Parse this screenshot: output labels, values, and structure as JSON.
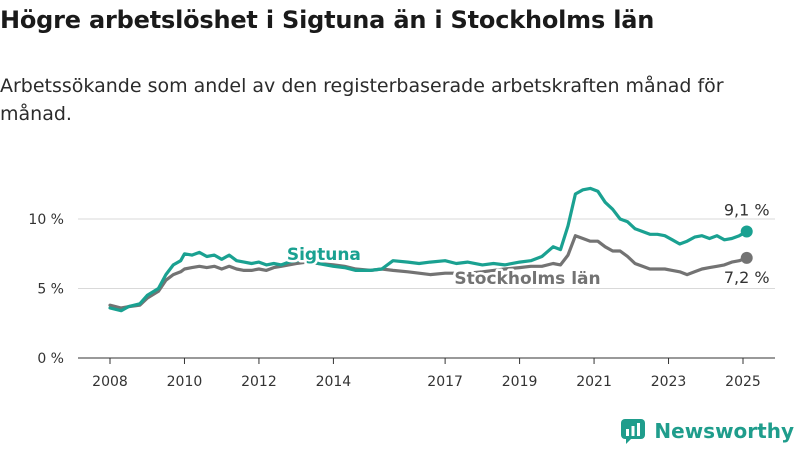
{
  "title": "Högre arbetslöshet i Sigtuna än i Stockholms län",
  "subtitle": "Arbetssökande som andel av den registerbaserade arbetskraften månad för månad.",
  "brand": "Newsworthy",
  "colors": {
    "sigtuna": "#1aa191",
    "stockholm": "#737373",
    "grid": "#d9d9d9"
  },
  "chart_data": {
    "type": "line",
    "ylim": [
      0,
      13
    ],
    "xlim": [
      2007.6,
      2025.6
    ],
    "x_ticks": [
      {
        "value": 2008,
        "label": "2008"
      },
      {
        "value": 2010,
        "label": "2010"
      },
      {
        "value": 2012,
        "label": "2012"
      },
      {
        "value": 2014,
        "label": "2014"
      },
      {
        "value": 2017,
        "label": "2017"
      },
      {
        "value": 2019,
        "label": "2019"
      },
      {
        "value": 2021,
        "label": "2021"
      },
      {
        "value": 2023,
        "label": "2023"
      },
      {
        "value": 2025,
        "label": "2025"
      }
    ],
    "y_ticks": [
      {
        "value": 0,
        "label": "0 %"
      },
      {
        "value": 5,
        "label": "5 %"
      },
      {
        "value": 10,
        "label": "10 %"
      }
    ],
    "series": [
      {
        "name": "Sigtuna",
        "end_label": "9,1 %",
        "x": [
          2008.0,
          2008.3,
          2008.5,
          2008.8,
          2009.0,
          2009.3,
          2009.5,
          2009.7,
          2009.9,
          2010.0,
          2010.2,
          2010.4,
          2010.6,
          2010.8,
          2011.0,
          2011.2,
          2011.4,
          2011.6,
          2011.8,
          2012.0,
          2012.2,
          2012.4,
          2012.6,
          2012.8,
          2013.0,
          2013.3,
          2013.6,
          2014.0,
          2014.3,
          2014.6,
          2015.0,
          2015.3,
          2015.6,
          2016.0,
          2016.3,
          2016.6,
          2017.0,
          2017.3,
          2017.6,
          2018.0,
          2018.3,
          2018.6,
          2019.0,
          2019.3,
          2019.6,
          2019.9,
          2020.1,
          2020.3,
          2020.5,
          2020.7,
          2020.9,
          2021.1,
          2021.3,
          2021.5,
          2021.7,
          2021.9,
          2022.1,
          2022.3,
          2022.5,
          2022.7,
          2022.9,
          2023.1,
          2023.3,
          2023.5,
          2023.7,
          2023.9,
          2024.1,
          2024.3,
          2024.5,
          2024.7,
          2024.9,
          2025.1
        ],
        "y": [
          3.6,
          3.4,
          3.7,
          3.9,
          4.5,
          5.0,
          6.0,
          6.7,
          7.0,
          7.5,
          7.4,
          7.6,
          7.3,
          7.4,
          7.1,
          7.4,
          7.0,
          6.9,
          6.8,
          6.9,
          6.7,
          6.8,
          6.7,
          6.9,
          7.0,
          7.1,
          6.8,
          6.6,
          6.5,
          6.3,
          6.3,
          6.4,
          7.0,
          6.9,
          6.8,
          6.9,
          7.0,
          6.8,
          6.9,
          6.7,
          6.8,
          6.7,
          6.9,
          7.0,
          7.3,
          8.0,
          7.8,
          9.5,
          11.8,
          12.1,
          12.2,
          12.0,
          11.2,
          10.7,
          10.0,
          9.8,
          9.3,
          9.1,
          8.9,
          8.9,
          8.8,
          8.5,
          8.2,
          8.4,
          8.7,
          8.8,
          8.6,
          8.8,
          8.5,
          8.6,
          8.8,
          9.1
        ]
      },
      {
        "name": "Stockholms län",
        "end_label": "7,2 %",
        "x": [
          2008.0,
          2008.3,
          2008.5,
          2008.8,
          2009.0,
          2009.3,
          2009.5,
          2009.7,
          2009.9,
          2010.0,
          2010.2,
          2010.4,
          2010.6,
          2010.8,
          2011.0,
          2011.2,
          2011.4,
          2011.6,
          2011.8,
          2012.0,
          2012.2,
          2012.4,
          2012.6,
          2012.8,
          2013.0,
          2013.3,
          2013.6,
          2014.0,
          2014.3,
          2014.6,
          2015.0,
          2015.3,
          2015.6,
          2016.0,
          2016.3,
          2016.6,
          2017.0,
          2017.3,
          2017.6,
          2018.0,
          2018.3,
          2018.6,
          2019.0,
          2019.3,
          2019.6,
          2019.9,
          2020.1,
          2020.3,
          2020.5,
          2020.7,
          2020.9,
          2021.1,
          2021.3,
          2021.5,
          2021.7,
          2021.9,
          2022.1,
          2022.3,
          2022.5,
          2022.7,
          2022.9,
          2023.1,
          2023.3,
          2023.5,
          2023.7,
          2023.9,
          2024.1,
          2024.3,
          2024.5,
          2024.7,
          2024.9,
          2025.1
        ],
        "y": [
          3.8,
          3.6,
          3.7,
          3.8,
          4.3,
          4.8,
          5.6,
          6.0,
          6.2,
          6.4,
          6.5,
          6.6,
          6.5,
          6.6,
          6.4,
          6.6,
          6.4,
          6.3,
          6.3,
          6.4,
          6.3,
          6.5,
          6.6,
          6.7,
          6.8,
          6.9,
          6.8,
          6.7,
          6.6,
          6.4,
          6.3,
          6.4,
          6.3,
          6.2,
          6.1,
          6.0,
          6.1,
          6.1,
          6.1,
          6.2,
          6.3,
          6.4,
          6.5,
          6.6,
          6.6,
          6.8,
          6.7,
          7.4,
          8.8,
          8.6,
          8.4,
          8.4,
          8.0,
          7.7,
          7.7,
          7.3,
          6.8,
          6.6,
          6.4,
          6.4,
          6.4,
          6.3,
          6.2,
          6.0,
          6.2,
          6.4,
          6.5,
          6.6,
          6.7,
          6.9,
          7.0,
          7.2
        ]
      }
    ]
  }
}
